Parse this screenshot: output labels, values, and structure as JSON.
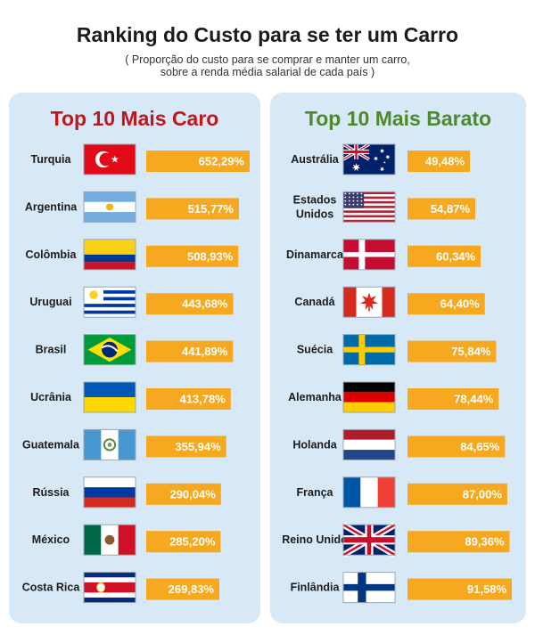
{
  "header": {
    "title": "Ranking do Custo para se ter um Carro",
    "subtitle_line1": "( Proporção do custo para se comprar e manter um carro,",
    "subtitle_line2": "sobre a renda média salarial de cada país )"
  },
  "colors": {
    "bar": "#f6a81e",
    "panel_bg": "#d7e8f6",
    "caro_title": "#c4141c",
    "barato_title": "#4e8a2a"
  },
  "chart_data": [
    {
      "type": "bar",
      "title": "Top 10 Mais Caro",
      "categories": [
        "Turquia",
        "Argentina",
        "Colômbia",
        "Uruguai",
        "Brasil",
        "Ucrânia",
        "Guatemala",
        "Rússia",
        "México",
        "Costa Rica"
      ],
      "values": [
        652.29,
        515.77,
        508.93,
        443.68,
        441.89,
        413.78,
        355.94,
        290.04,
        285.2,
        269.83
      ],
      "value_labels": [
        "652,29%",
        "515,77%",
        "508,93%",
        "443,68%",
        "441,89%",
        "413,78%",
        "355,94%",
        "290,04%",
        "285,20%",
        "269,83%"
      ],
      "flags": [
        "turkey-flag",
        "argentina-flag",
        "colombia-flag",
        "uruguay-flag",
        "brazil-flag",
        "ukraine-flag",
        "guatemala-flag",
        "russia-flag",
        "mexico-flag",
        "costa-rica-flag"
      ],
      "orientation": "horizontal"
    },
    {
      "type": "bar",
      "title": "Top 10 Mais Barato",
      "categories": [
        "Austrália",
        "Estados Unidos",
        "Dinamarca",
        "Canadá",
        "Suécia",
        "Alemanha",
        "Holanda",
        "França",
        "Reino Unido",
        "Finlândia"
      ],
      "values": [
        49.48,
        54.87,
        60.34,
        64.4,
        75.84,
        78.44,
        84.65,
        87.0,
        89.36,
        91.58
      ],
      "value_labels": [
        "49,48%",
        "54,87%",
        "60,34%",
        "64,40%",
        "75,84%",
        "78,44%",
        "84,65%",
        "87,00%",
        "89,36%",
        "91,58%"
      ],
      "flags": [
        "australia-flag",
        "usa-flag",
        "denmark-flag",
        "canada-flag",
        "sweden-flag",
        "germany-flag",
        "netherlands-flag",
        "france-flag",
        "uk-flag",
        "finland-flag"
      ],
      "orientation": "horizontal"
    }
  ]
}
